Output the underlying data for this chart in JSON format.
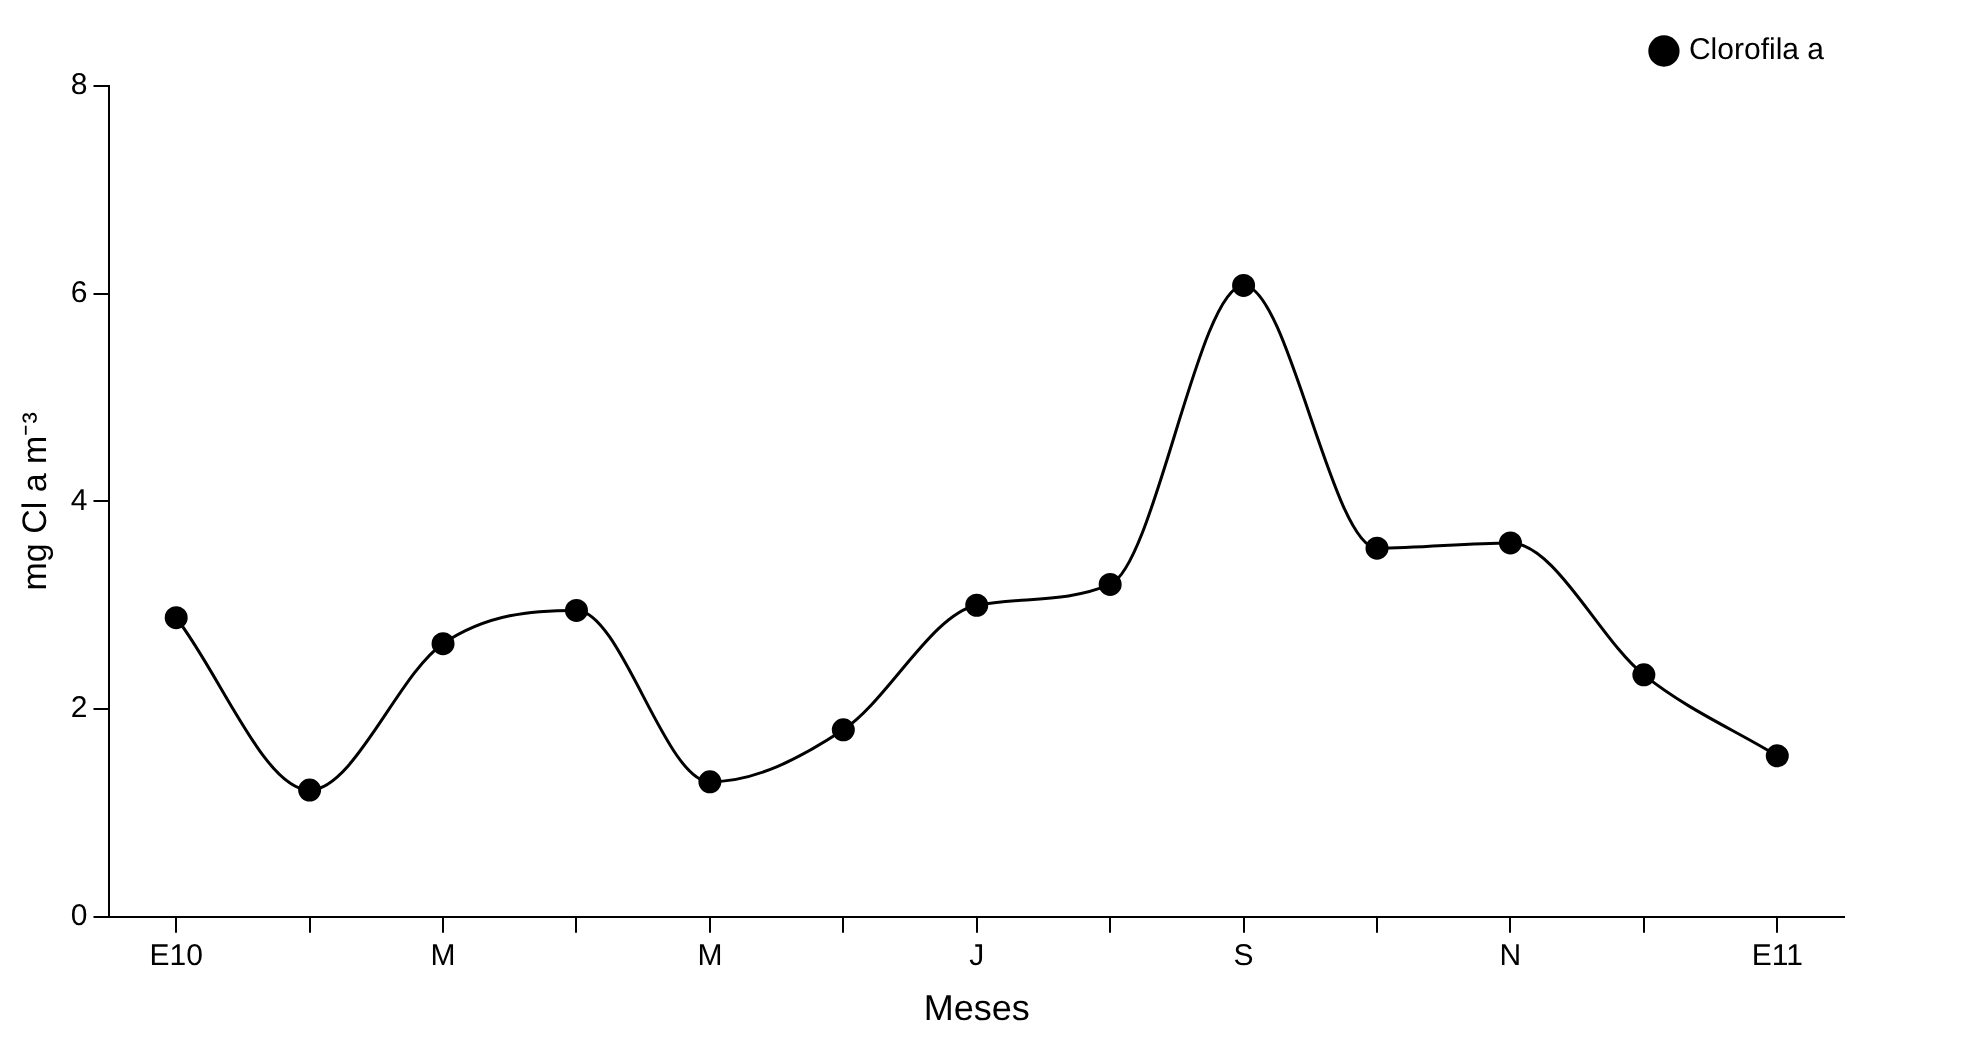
{
  "chart_data": {
    "type": "line",
    "xlabel": "Meses",
    "ylabel": "mg Cl a m⁻³",
    "categories": [
      "E10",
      null,
      "M",
      null,
      "M",
      null,
      "J",
      null,
      "S",
      null,
      "N",
      null,
      "E11"
    ],
    "series": [
      {
        "name": "Clorofila a",
        "color": "#000000",
        "values": [
          2.88,
          1.22,
          2.63,
          2.95,
          1.3,
          1.8,
          3.0,
          3.2,
          6.08,
          3.55,
          3.6,
          2.33,
          1.55
        ]
      }
    ],
    "ylim": [
      0,
      8
    ],
    "yticks": [
      0,
      2,
      4,
      6,
      8
    ],
    "grid": false,
    "legend": "top right",
    "marker": "circle",
    "line_style": "solid"
  }
}
